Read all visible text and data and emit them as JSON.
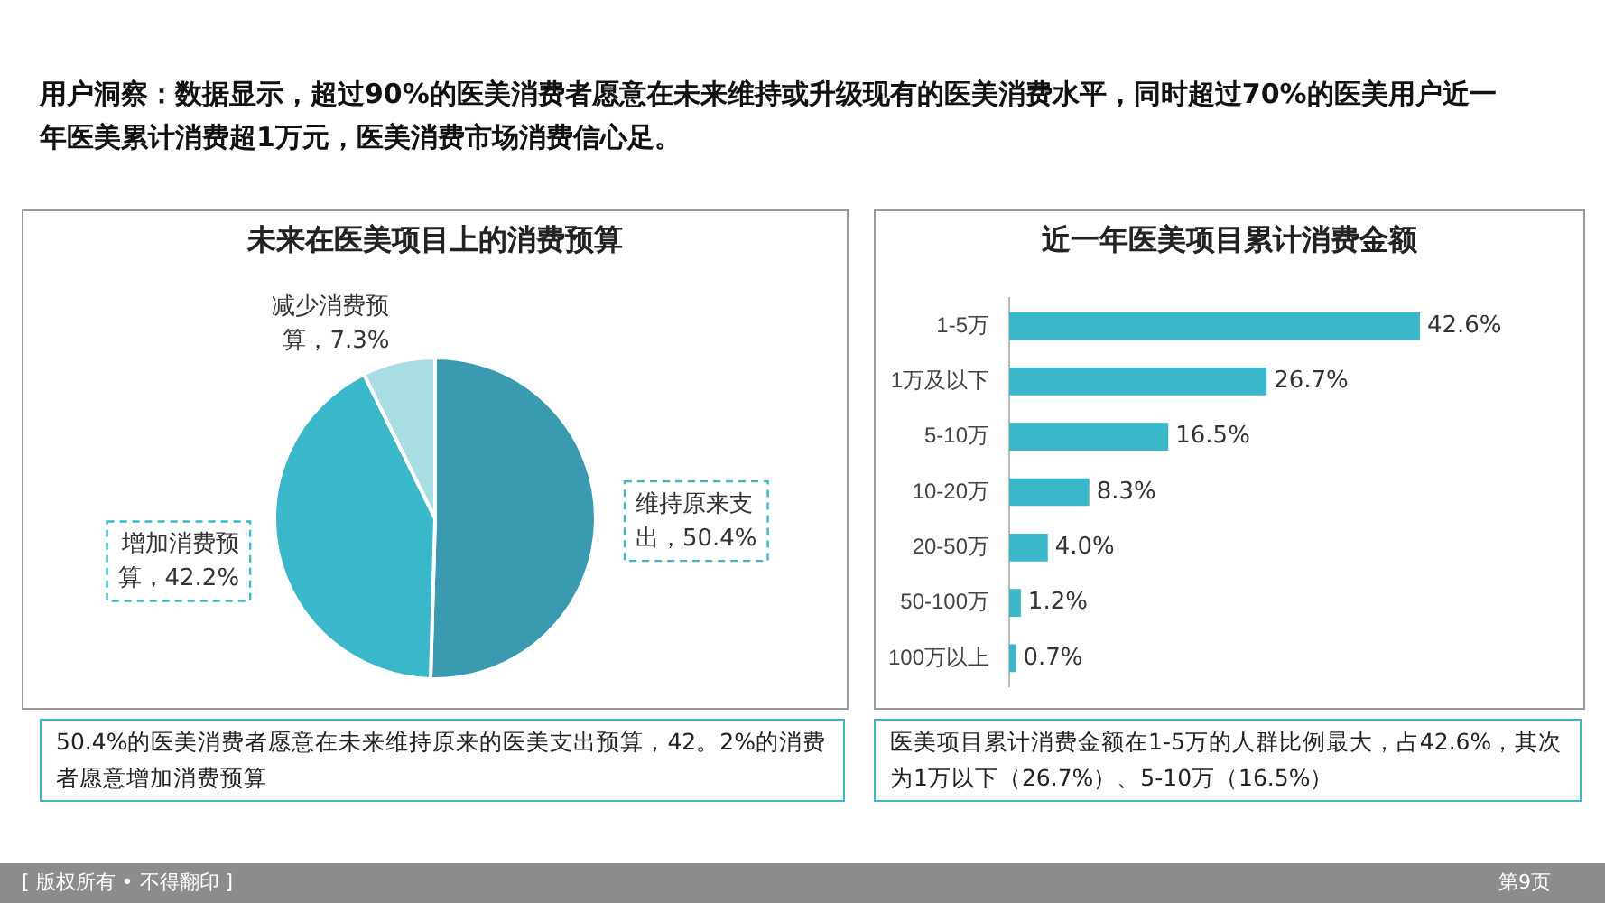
{
  "chart_data": [
    {
      "type": "pie",
      "title": "未来在医美项目上的消费预算",
      "categories": [
        "维持原来支出",
        "增加消费预算",
        "减少消费预算"
      ],
      "values": [
        50.4,
        42.2,
        7.3
      ],
      "colors": [
        "#3a9bb0",
        "#3ab7c8",
        "#a8dde4"
      ],
      "value_labels": [
        "50.4%",
        "42.2%",
        "7.3%"
      ],
      "legend": false,
      "annotations": [
        "用户洞察：数据显示，超过90%的医美消费者愿意在未来维持或升级现有的医美消费水平，同时超过70%的医美用户近一年医美累计消费超1万元，医美消费市场消费信心足。",
        "50.4%的医美消费者愿意在未来维持原来的医美支出预算，42。2%的消费者愿意增加消费预算",
        "[ 版权所有 • 不得翻印 ]",
        "第9页"
      ]
    },
    {
      "type": "bar",
      "orientation": "horizontal",
      "title": "近一年医美项目累计消费金额",
      "categories": [
        "1-5万",
        "1万及以下",
        "5-10万",
        "10-20万",
        "20-50万",
        "50-100万",
        "100万以上"
      ],
      "values": [
        42.6,
        26.7,
        16.5,
        8.3,
        4.0,
        1.2,
        0.7
      ],
      "color": "#3ab7c8",
      "value_labels": [
        "42.6%",
        "26.7%",
        "16.5%",
        "8.3%",
        "4.0%",
        "1.2%",
        "0.7%"
      ],
      "legend": false,
      "annotations": [
        "医美项目累计消费金额在1-5万的人群比例最大，占42.6%，其次为1万以下（26.7%）、5-10万（16.5%）"
      ]
    }
  ]
}
